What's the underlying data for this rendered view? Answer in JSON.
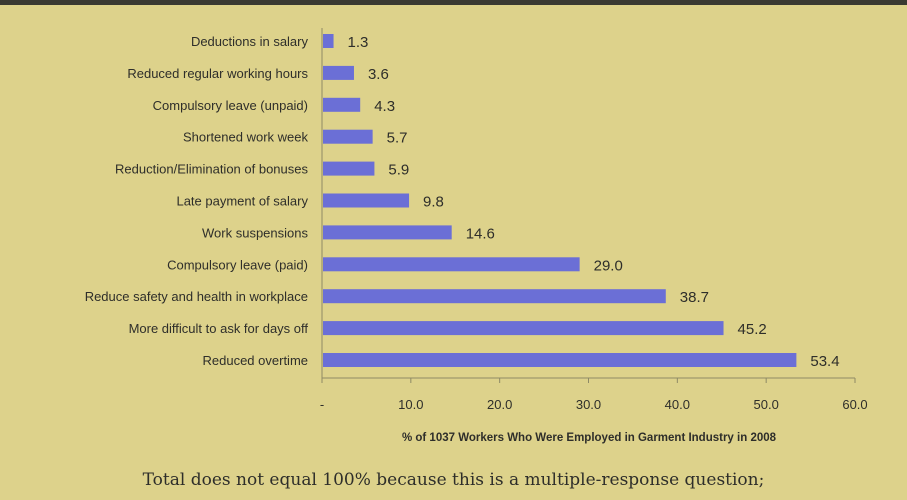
{
  "chart_data": {
    "type": "bar",
    "orientation": "horizontal",
    "categories": [
      "Deductions in salary",
      "Reduced regular working hours",
      "Compulsory leave (unpaid)",
      "Shortened work week",
      "Reduction/Elimination of bonuses",
      "Late payment of salary",
      "Work suspensions",
      "Compulsory leave (paid)",
      "Reduce safety and health in workplace",
      "More difficult to ask for days off",
      "Reduced overtime"
    ],
    "values": [
      1.3,
      3.6,
      4.3,
      5.7,
      5.9,
      9.8,
      14.6,
      29.0,
      38.7,
      45.2,
      53.4
    ],
    "value_labels": [
      "1.3",
      "3.6",
      "4.3",
      "5.7",
      "5.9",
      "9.8",
      "14.6",
      "29.0",
      "38.7",
      "45.2",
      "53.4"
    ],
    "xlabel": "% of 1037 Workers Who Were Employed in Garment Industry in 2008",
    "xlim": [
      0,
      60
    ],
    "x_ticks": [
      "-",
      "10.0",
      "20.0",
      "30.0",
      "40.0",
      "50.0",
      "60.0"
    ],
    "grid": false,
    "bar_color": "#6b6fd6",
    "background_color": "#ddd28b"
  },
  "note": "Total does not equal 100% because this is a multiple-response question;"
}
